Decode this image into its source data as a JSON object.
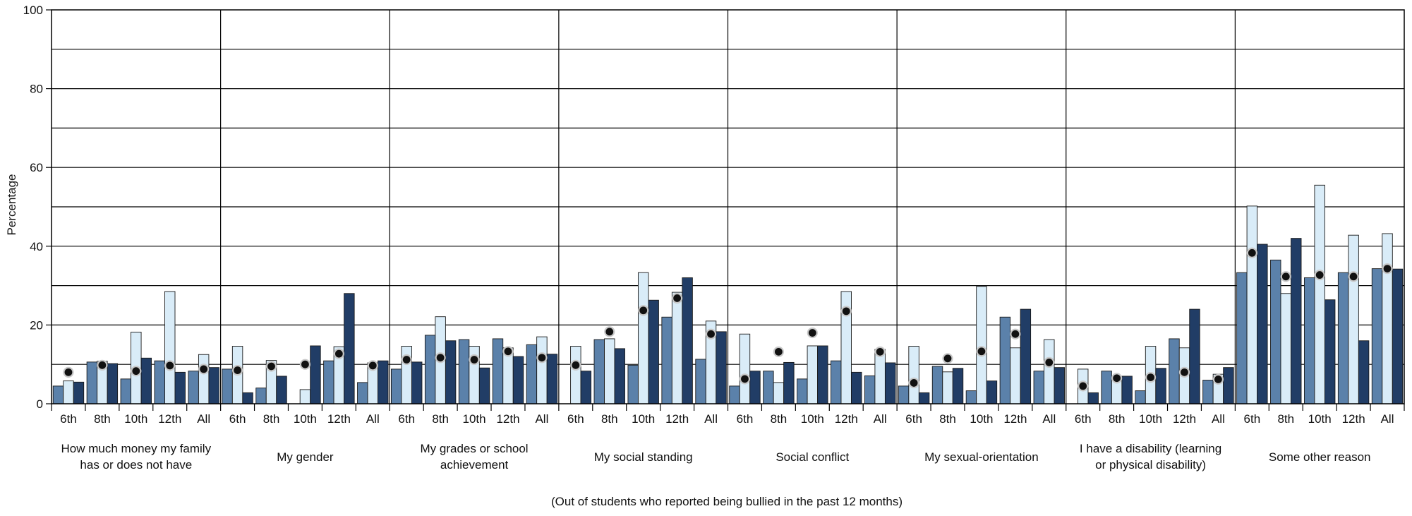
{
  "chart_data": {
    "type": "bar",
    "ylabel": "Percentage",
    "xlabel": "(Out of students who reported being bullied in the past 12 months)",
    "ylim": [
      0,
      100
    ],
    "y_ticks": [
      0,
      20,
      40,
      60,
      80,
      100
    ],
    "grid": true,
    "grades": [
      "6th",
      "8th",
      "10th",
      "12th",
      "All"
    ],
    "groups": [
      {
        "label": [
          "How much money my family",
          "has or does not have"
        ],
        "bars": [
          [
            4.5,
            5.8,
            5.5
          ],
          [
            10.6,
            10.8,
            10.2
          ],
          [
            6.3,
            18.2,
            11.6
          ],
          [
            10.9,
            28.5,
            8.0
          ],
          [
            8.3,
            12.5,
            9.2
          ]
        ],
        "dots": [
          8.0,
          9.8,
          8.3,
          9.7,
          8.8
        ]
      },
      {
        "label": [
          "My gender"
        ],
        "bars": [
          [
            8.8,
            14.6,
            2.8
          ],
          [
            4.0,
            11.0,
            7.0
          ],
          [
            0.0,
            3.6,
            14.7
          ],
          [
            10.9,
            14.5,
            28.0
          ],
          [
            5.4,
            10.4,
            10.9
          ]
        ],
        "dots": [
          8.5,
          9.5,
          10.0,
          12.7,
          9.7
        ]
      },
      {
        "label": [
          "My grades or school",
          "achievement"
        ],
        "bars": [
          [
            8.8,
            14.6,
            10.6
          ],
          [
            17.4,
            22.1,
            16.0
          ],
          [
            16.3,
            14.6,
            9.1
          ],
          [
            16.5,
            14.2,
            12.0
          ],
          [
            15.0,
            17.0,
            12.6
          ]
        ],
        "dots": [
          11.2,
          11.7,
          11.2,
          13.3,
          11.7
        ]
      },
      {
        "label": [
          "My social standing"
        ],
        "bars": [
          [
            0.0,
            14.6,
            8.3
          ],
          [
            16.3,
            16.5,
            14.0
          ],
          [
            9.8,
            33.3,
            26.3
          ],
          [
            22.0,
            28.3,
            32.0
          ],
          [
            11.3,
            21.0,
            18.3
          ]
        ],
        "dots": [
          9.8,
          18.3,
          23.7,
          26.8,
          17.7
        ]
      },
      {
        "label": [
          "Social conflict"
        ],
        "bars": [
          [
            4.5,
            17.7,
            8.3
          ],
          [
            8.3,
            5.4,
            10.5
          ],
          [
            6.3,
            14.7,
            14.7
          ],
          [
            10.9,
            28.5,
            8.0
          ],
          [
            7.1,
            13.8,
            10.4
          ]
        ],
        "dots": [
          6.3,
          13.2,
          18.0,
          23.5,
          13.2
        ]
      },
      {
        "label": [
          "My sexual-orientation"
        ],
        "bars": [
          [
            4.5,
            14.6,
            2.8
          ],
          [
            9.5,
            8.1,
            9.0
          ],
          [
            3.3,
            29.8,
            5.8
          ],
          [
            22.0,
            14.2,
            24.0
          ],
          [
            8.3,
            16.3,
            9.2
          ]
        ],
        "dots": [
          5.3,
          11.5,
          13.3,
          17.7,
          10.5
        ]
      },
      {
        "label": [
          "I have a disability (learning",
          "or physical disability)"
        ],
        "bars": [
          [
            0.0,
            8.8,
            2.8
          ],
          [
            8.3,
            6.5,
            7.0
          ],
          [
            3.3,
            14.6,
            9.0
          ],
          [
            16.5,
            14.2,
            24.0
          ],
          [
            6.0,
            7.5,
            9.2
          ]
        ],
        "dots": [
          4.5,
          6.5,
          6.7,
          8.0,
          6.2
        ]
      },
      {
        "label": [
          "Some other reason"
        ],
        "bars": [
          [
            33.3,
            50.2,
            40.5
          ],
          [
            36.5,
            28.0,
            42.0
          ],
          [
            32.0,
            55.5,
            26.4
          ],
          [
            33.3,
            42.8,
            16.0
          ],
          [
            34.3,
            43.2,
            34.2
          ]
        ],
        "dots": [
          38.3,
          32.3,
          32.7,
          32.3,
          34.3
        ]
      }
    ],
    "colors": {
      "bar_a": "#5b81aa",
      "bar_b": "#d9ecf8",
      "bar_c": "#213d66",
      "dot": "#111111",
      "dot_ring": "#c8c8c8",
      "grid": "#000000"
    }
  }
}
